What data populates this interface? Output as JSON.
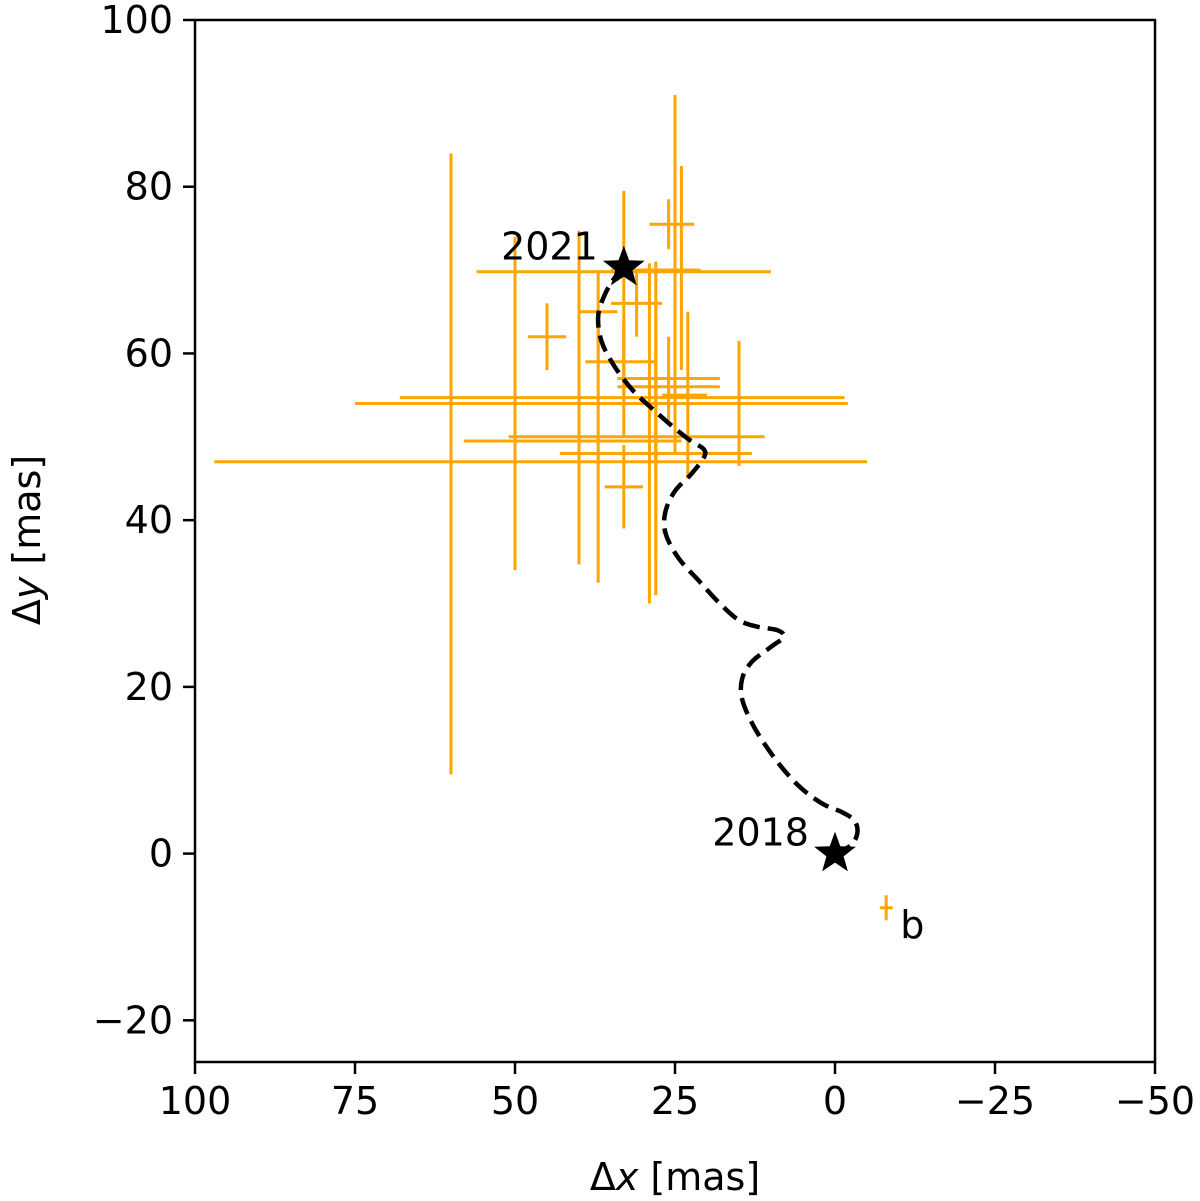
{
  "chart_data": {
    "type": "scatter",
    "xlabel_symbol": "Δ",
    "xlabel_var": "x",
    "xlabel_unit": " [mas]",
    "ylabel_symbol": "Δ",
    "ylabel_var": "y",
    "ylabel_unit": " [mas]",
    "xlim": [
      100,
      -50
    ],
    "ylim": [
      -25,
      100
    ],
    "x_inverted": true,
    "xticks": [
      100,
      75,
      50,
      25,
      0,
      -25,
      -50
    ],
    "xtick_labels": [
      "100",
      "75",
      "50",
      "25",
      "0",
      "−25",
      "−50"
    ],
    "yticks": [
      -20,
      0,
      20,
      40,
      60,
      80,
      100
    ],
    "ytick_labels": [
      "−20",
      "0",
      "20",
      "40",
      "60",
      "80",
      "100"
    ],
    "grid": false,
    "colors": {
      "measurements": "#ffa500",
      "track": "#000000"
    },
    "measurements": [
      {
        "x": 60.0,
        "y": 47.0,
        "xerr": [
          37.0,
          65.0
        ],
        "yerr": [
          37.5,
          37.0
        ]
      },
      {
        "x": 40.0,
        "y": 54.7,
        "xerr": [
          28.0,
          41.5
        ],
        "yerr": [
          20.0,
          20.0
        ]
      },
      {
        "x": 50.0,
        "y": 54.0,
        "xerr": [
          25.0,
          52.0
        ],
        "yerr": [
          20.0,
          20.0
        ]
      },
      {
        "x": 28.0,
        "y": 48.0,
        "xerr": [
          15.0,
          15.0
        ],
        "yerr": [
          12.5,
          12.5
        ]
      },
      {
        "x": 28.0,
        "y": 50.0,
        "xerr": [
          23.0,
          17.0
        ],
        "yerr": [
          19.0,
          21.0
        ]
      },
      {
        "x": 37.0,
        "y": 49.5,
        "xerr": [
          21.0,
          13.0
        ],
        "yerr": [
          17.0,
          15.0
        ]
      },
      {
        "x": 29.0,
        "y": 69.8,
        "xerr": [
          27.0,
          19.0
        ],
        "yerr": [
          39.8,
          1.0
        ]
      },
      {
        "x": 33.0,
        "y": 70.0,
        "xerr": [
          2.0,
          5.0
        ],
        "yerr": [
          20.0,
          9.5
        ]
      },
      {
        "x": 31.0,
        "y": 66.0,
        "xerr": [
          4.0,
          4.0
        ],
        "yerr": [
          4.0,
          4.0
        ]
      },
      {
        "x": 25.0,
        "y": 70.0,
        "xerr": [
          6.0,
          3.0
        ],
        "yerr": [
          22.0,
          21.0
        ]
      },
      {
        "x": 26.0,
        "y": 75.5,
        "xerr": [
          3.0,
          4.0
        ],
        "yerr": [
          3.0,
          3.0
        ]
      },
      {
        "x": 24.0,
        "y": 70.0,
        "xerr": [
          4.0,
          3.0
        ],
        "yerr": [
          12.0,
          12.5
        ]
      },
      {
        "x": 23.0,
        "y": 55.0,
        "xerr": [
          4.0,
          3.0
        ],
        "yerr": [
          10.0,
          10.0
        ]
      },
      {
        "x": 15.0,
        "y": 54.0,
        "xerr": [
          13.0,
          9.0
        ],
        "yerr": [
          7.5,
          7.5
        ]
      },
      {
        "x": 28.0,
        "y": 56.0,
        "xerr": [
          6.0,
          10.0
        ],
        "yerr": [
          10.0,
          10.0
        ]
      },
      {
        "x": 33.0,
        "y": 59.0,
        "xerr": [
          6.0,
          5.0
        ],
        "yerr": [
          5.0,
          5.0
        ]
      },
      {
        "x": 45.0,
        "y": 62.0,
        "xerr": [
          3.0,
          3.0
        ],
        "yerr": [
          4.0,
          4.0
        ]
      },
      {
        "x": 37.0,
        "y": 65.0,
        "xerr": [
          3.0,
          3.0
        ],
        "yerr": [
          5.0,
          5.0
        ]
      },
      {
        "x": 26.0,
        "y": 57.0,
        "xerr": [
          8.0,
          8.0
        ],
        "yerr": [
          5.0,
          5.0
        ]
      },
      {
        "x": 33.0,
        "y": 44.0,
        "xerr": [
          3.0,
          3.0
        ],
        "yerr": [
          5.0,
          5.0
        ]
      },
      {
        "x": -8.0,
        "y": -6.5,
        "xerr": [
          1.0,
          1.0
        ],
        "yerr": [
          1.5,
          1.5
        ]
      }
    ],
    "track": [
      [
        0.0,
        0.0
      ],
      [
        -2.5,
        1.0
      ],
      [
        -3.5,
        2.5
      ],
      [
        -3.0,
        4.0
      ],
      [
        -1.0,
        5.0
      ],
      [
        2.0,
        6.0
      ],
      [
        5.5,
        8.0
      ],
      [
        9.0,
        11.0
      ],
      [
        12.5,
        15.0
      ],
      [
        14.5,
        18.5
      ],
      [
        14.5,
        21.0
      ],
      [
        13.0,
        23.0
      ],
      [
        10.0,
        24.8
      ],
      [
        8.0,
        26.0
      ],
      [
        9.0,
        26.8
      ],
      [
        12.0,
        27.2
      ],
      [
        15.0,
        28.0
      ],
      [
        18.0,
        30.0
      ],
      [
        21.0,
        32.5
      ],
      [
        24.5,
        35.5
      ],
      [
        26.5,
        38.5
      ],
      [
        26.5,
        41.0
      ],
      [
        25.0,
        43.5
      ],
      [
        22.5,
        45.5
      ],
      [
        20.5,
        47.5
      ],
      [
        20.5,
        48.5
      ],
      [
        22.5,
        49.5
      ],
      [
        25.0,
        51.0
      ],
      [
        28.0,
        53.0
      ],
      [
        31.5,
        55.5
      ],
      [
        34.5,
        58.5
      ],
      [
        36.5,
        61.5
      ],
      [
        37.0,
        64.5
      ],
      [
        36.0,
        67.0
      ],
      [
        34.5,
        69.0
      ],
      [
        33.0,
        70.3
      ]
    ],
    "stars": [
      {
        "x": 0.0,
        "y": 0.0,
        "label": "2018"
      },
      {
        "x": 33.0,
        "y": 70.3,
        "label": "2021"
      }
    ],
    "point_label": {
      "x": -8.0,
      "y": -6.5,
      "text": "b"
    }
  }
}
